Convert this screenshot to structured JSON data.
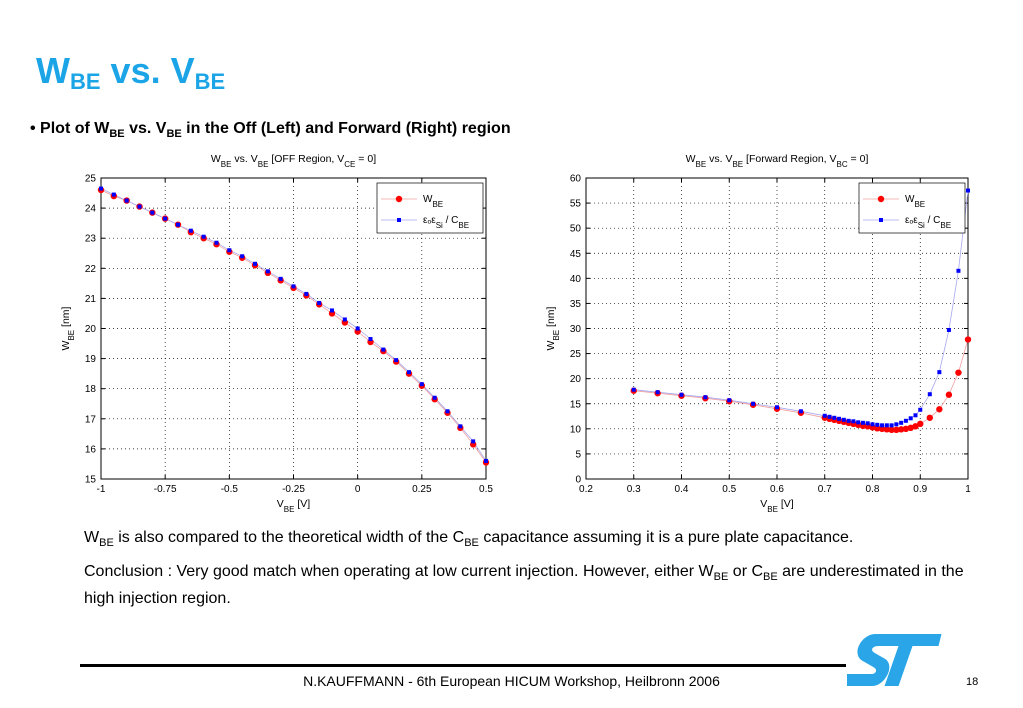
{
  "title": {
    "main": "W",
    "sub1": "BE",
    "mid": " vs. V",
    "sub2": "BE"
  },
  "bullet": {
    "mark": "• ",
    "p1": "Plot of  W",
    "s1": "BE",
    "p2": " vs.  V",
    "s2": "BE",
    "p3": "  in the Off (Left) and Forward (Right) region"
  },
  "para1": {
    "p1": "W",
    "s1": "BE",
    "p2": " is also compared to the theoretical width of the C",
    "s2": "BE",
    "p3": " capacitance assuming it is a pure plate capacitance."
  },
  "para2": {
    "p1": "Conclusion : Very good match when operating at low current injection. However, either W",
    "s1": "BE",
    "p2": " or C",
    "s2": "BE",
    "p3": " are underestimated in the high injection region."
  },
  "footer": {
    "text": "N.KAUFFMANN - 6th European HICUM Workshop, Heilbronn 2006",
    "page": "18"
  },
  "colors": {
    "title": "#1ba4e6",
    "wbe_series": "#ff0000",
    "cbe_series": "#0000ff",
    "logo": "#2aa6e8"
  },
  "logo_icon": "st-logo",
  "chart_data": [
    {
      "type": "scatter",
      "title": {
        "t1": "W",
        "s1": "BE",
        "t2": "  vs. V",
        "s2": "BE",
        "t3": "  [OFF Region, V",
        "s3": "CE",
        "t4": " = 0]"
      },
      "xlabel": {
        "t": "V",
        "s": "BE",
        "t2": " [V]"
      },
      "ylabel": {
        "t": "W",
        "s": "BE",
        "t2": " [nm]"
      },
      "xlim": [
        -1,
        0.5
      ],
      "ylim": [
        15,
        25
      ],
      "xticks": [
        -1,
        -0.75,
        -0.5,
        -0.25,
        0,
        0.25,
        0.5
      ],
      "xtick_labels": [
        "-1",
        "-0.75",
        "-0.5",
        "-0.25",
        "0",
        "0.25",
        "0.5"
      ],
      "yticks": [
        15,
        16,
        17,
        18,
        19,
        20,
        21,
        22,
        23,
        24,
        25
      ],
      "ytick_labels": [
        "15",
        "16",
        "17",
        "18",
        "19",
        "20",
        "21",
        "22",
        "23",
        "24",
        "25"
      ],
      "grid": true,
      "legend_position": "top-right",
      "legend": [
        {
          "t": "W",
          "s": "BE"
        },
        {
          "t": "εₒε",
          "s": "Si",
          "t2": " / C",
          "s2": "BE"
        }
      ],
      "series": [
        {
          "x": [
            -1.0,
            -0.95,
            -0.9,
            -0.85,
            -0.8,
            -0.75,
            -0.7,
            -0.65,
            -0.6,
            -0.55,
            -0.5,
            -0.45,
            -0.4,
            -0.35,
            -0.3,
            -0.25,
            -0.2,
            -0.15,
            -0.1,
            -0.05,
            0.0,
            0.05,
            0.1,
            0.15,
            0.2,
            0.25,
            0.3,
            0.35,
            0.4,
            0.45,
            0.5
          ],
          "y": [
            24.6,
            24.4,
            24.25,
            24.05,
            23.85,
            23.65,
            23.45,
            23.2,
            23.0,
            22.8,
            22.55,
            22.35,
            22.1,
            21.85,
            21.6,
            21.35,
            21.1,
            20.8,
            20.5,
            20.2,
            19.9,
            19.55,
            19.25,
            18.9,
            18.5,
            18.1,
            17.65,
            17.2,
            16.7,
            16.15,
            15.55
          ],
          "marker": "circle"
        },
        {
          "x": [
            -1.0,
            -0.95,
            -0.9,
            -0.85,
            -0.8,
            -0.75,
            -0.7,
            -0.65,
            -0.6,
            -0.55,
            -0.5,
            -0.45,
            -0.4,
            -0.35,
            -0.3,
            -0.25,
            -0.2,
            -0.15,
            -0.1,
            -0.05,
            0.0,
            0.05,
            0.1,
            0.15,
            0.2,
            0.25,
            0.3,
            0.35,
            0.4,
            0.45,
            0.5
          ],
          "y": [
            24.65,
            24.45,
            24.25,
            24.05,
            23.85,
            23.65,
            23.45,
            23.25,
            23.05,
            22.85,
            22.6,
            22.4,
            22.15,
            21.9,
            21.65,
            21.4,
            21.15,
            20.85,
            20.6,
            20.3,
            20.0,
            19.65,
            19.3,
            18.95,
            18.55,
            18.15,
            17.7,
            17.25,
            16.75,
            16.25,
            15.6
          ],
          "marker": "square"
        }
      ]
    },
    {
      "type": "scatter",
      "title": {
        "t1": "W",
        "s1": "BE",
        "t2": "  vs. V",
        "s2": "BE",
        "t3": "  [Forward Region, V",
        "s3": "BC",
        "t4": " = 0]"
      },
      "xlabel": {
        "t": "V",
        "s": "BE",
        "t2": " [V]"
      },
      "ylabel": {
        "t": "W",
        "s": "BE",
        "t2": " [nm]"
      },
      "xlim": [
        0.2,
        1
      ],
      "ylim": [
        0,
        60
      ],
      "xticks": [
        0.2,
        0.3,
        0.4,
        0.5,
        0.6,
        0.7,
        0.8,
        0.9,
        1
      ],
      "xtick_labels": [
        "0.2",
        "0.3",
        "0.4",
        "0.5",
        "0.6",
        "0.7",
        "0.8",
        "0.9",
        "1"
      ],
      "yticks": [
        0,
        5,
        10,
        15,
        20,
        25,
        30,
        35,
        40,
        45,
        50,
        55,
        60
      ],
      "ytick_labels": [
        "0",
        "5",
        "10",
        "15",
        "20",
        "25",
        "30",
        "35",
        "40",
        "45",
        "50",
        "55",
        "60"
      ],
      "grid": true,
      "legend_position": "top-right",
      "legend": [
        {
          "t": "W",
          "s": "BE"
        },
        {
          "t": "εₒε",
          "s": "Si",
          "t2": " / C",
          "s2": "BE"
        }
      ],
      "series": [
        {
          "x": [
            0.3,
            0.35,
            0.4,
            0.45,
            0.5,
            0.55,
            0.6,
            0.65,
            0.7,
            0.71,
            0.72,
            0.73,
            0.74,
            0.75,
            0.76,
            0.77,
            0.78,
            0.79,
            0.8,
            0.81,
            0.82,
            0.83,
            0.84,
            0.85,
            0.86,
            0.87,
            0.88,
            0.89,
            0.9,
            0.92,
            0.94,
            0.96,
            0.98,
            1.0
          ],
          "y": [
            17.6,
            17.1,
            16.6,
            16.1,
            15.5,
            14.8,
            14.0,
            13.2,
            12.2,
            12.0,
            11.8,
            11.6,
            11.4,
            11.2,
            11.0,
            10.8,
            10.6,
            10.5,
            10.3,
            10.1,
            10.0,
            9.9,
            9.8,
            9.8,
            9.9,
            10.0,
            10.2,
            10.5,
            11.0,
            12.2,
            13.9,
            16.8,
            21.2,
            27.8
          ],
          "marker": "circle"
        },
        {
          "x": [
            0.3,
            0.35,
            0.4,
            0.45,
            0.5,
            0.55,
            0.6,
            0.65,
            0.7,
            0.71,
            0.72,
            0.73,
            0.74,
            0.75,
            0.76,
            0.77,
            0.78,
            0.79,
            0.8,
            0.81,
            0.82,
            0.83,
            0.84,
            0.85,
            0.86,
            0.87,
            0.88,
            0.89,
            0.9,
            0.92,
            0.94,
            0.96,
            0.98,
            1.0
          ],
          "y": [
            17.8,
            17.3,
            16.8,
            16.3,
            15.7,
            15.0,
            14.3,
            13.5,
            12.6,
            12.4,
            12.2,
            12.0,
            11.8,
            11.6,
            11.5,
            11.3,
            11.2,
            11.1,
            10.9,
            10.8,
            10.7,
            10.7,
            10.7,
            10.9,
            11.2,
            11.6,
            12.1,
            12.7,
            13.8,
            16.9,
            21.3,
            29.7,
            41.5,
            57.5
          ],
          "marker": "square"
        }
      ]
    }
  ]
}
